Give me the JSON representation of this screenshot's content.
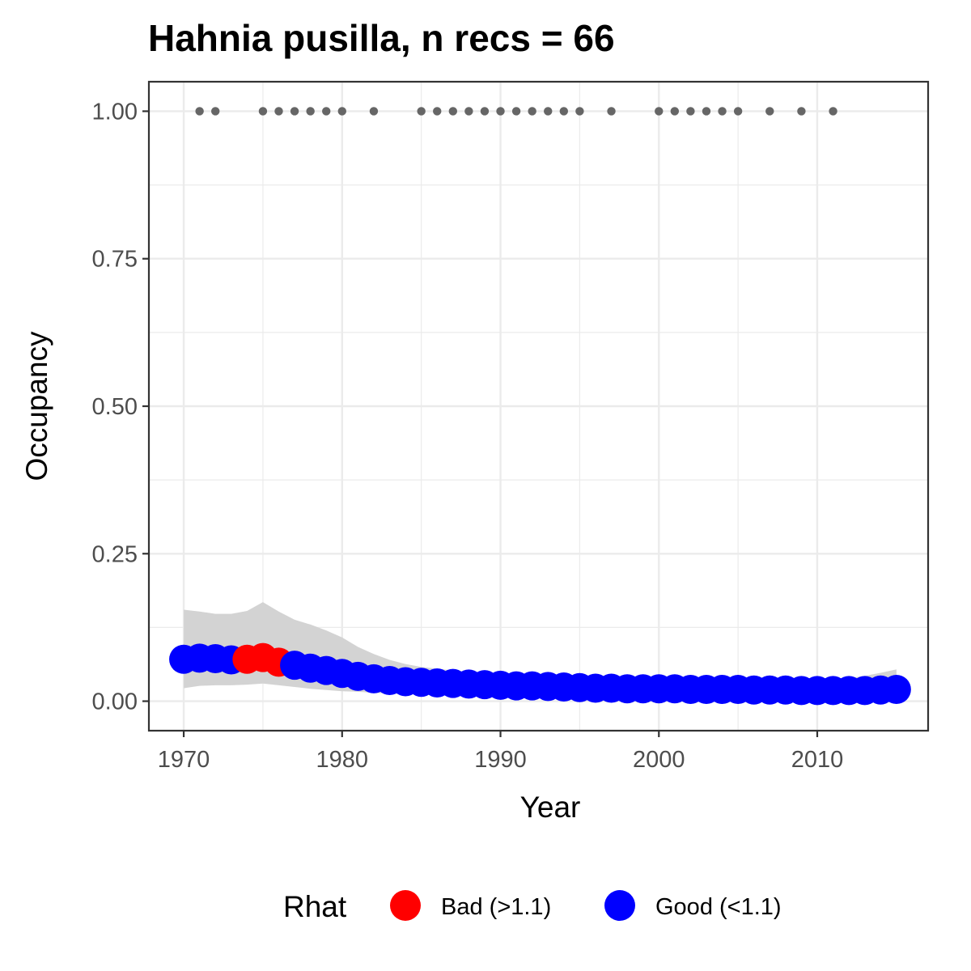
{
  "chart_data": {
    "type": "scatter",
    "title": "Hahnia pusilla, n recs = 66",
    "xlabel": "Year",
    "ylabel": "Occupancy",
    "xlim": [
      1967.8,
      2017.0
    ],
    "ylim": [
      -0.05,
      1.05
    ],
    "x_ticks": [
      1970,
      1980,
      1990,
      2000,
      2010
    ],
    "x_tick_labels": [
      "1970",
      "1980",
      "1990",
      "2000",
      "2010"
    ],
    "y_ticks": [
      0,
      0.25,
      0.5,
      0.75,
      1.0
    ],
    "y_tick_labels": [
      "0.00",
      "0.25",
      "0.50",
      "0.75",
      "1.00"
    ],
    "grid": true,
    "legend": {
      "title": "Rhat",
      "position": "bottom",
      "entries": [
        {
          "label": "Bad (>1.1)",
          "color": "#ff0000"
        },
        {
          "label": "Good (<1.1)",
          "color": "#0000ff"
        }
      ]
    },
    "colors": {
      "bad": "#ff0000",
      "good": "#0000ff",
      "records": "#666666",
      "ribbon": "#d3d3d3"
    },
    "records": {
      "y": 1.0,
      "years": [
        1971,
        1972,
        1975,
        1976,
        1977,
        1978,
        1979,
        1980,
        1982,
        1985,
        1986,
        1987,
        1988,
        1989,
        1990,
        1991,
        1992,
        1993,
        1994,
        1995,
        1997,
        2000,
        2001,
        2002,
        2003,
        2004,
        2005,
        2007,
        2009,
        2011
      ]
    },
    "series": [
      {
        "x": [
          1970,
          1971,
          1972,
          1973,
          1974,
          1975,
          1976,
          1977,
          1978,
          1979,
          1980,
          1981,
          1982,
          1983,
          1984,
          1985,
          1986,
          1987,
          1988,
          1989,
          1990,
          1991,
          1992,
          1993,
          1994,
          1995,
          1996,
          1997,
          1998,
          1999,
          2000,
          2001,
          2002,
          2003,
          2004,
          2005,
          2006,
          2007,
          2008,
          2009,
          2010,
          2011,
          2012,
          2013,
          2014,
          2015
        ],
        "mean": [
          0.071,
          0.073,
          0.072,
          0.07,
          0.071,
          0.074,
          0.066,
          0.061,
          0.056,
          0.052,
          0.047,
          0.042,
          0.038,
          0.035,
          0.033,
          0.032,
          0.031,
          0.03,
          0.029,
          0.028,
          0.027,
          0.026,
          0.026,
          0.025,
          0.024,
          0.023,
          0.022,
          0.022,
          0.021,
          0.021,
          0.021,
          0.021,
          0.02,
          0.02,
          0.02,
          0.02,
          0.019,
          0.019,
          0.019,
          0.018,
          0.018,
          0.018,
          0.018,
          0.018,
          0.019,
          0.02
        ],
        "rhat": [
          "good",
          "good",
          "good",
          "good",
          "bad",
          "bad",
          "bad",
          "good",
          "good",
          "good",
          "good",
          "good",
          "good",
          "good",
          "good",
          "good",
          "good",
          "good",
          "good",
          "good",
          "good",
          "good",
          "good",
          "good",
          "good",
          "good",
          "good",
          "good",
          "good",
          "good",
          "good",
          "good",
          "good",
          "good",
          "good",
          "good",
          "good",
          "good",
          "good",
          "good",
          "good",
          "good",
          "good",
          "good",
          "good",
          "good"
        ],
        "lower": [
          0.022,
          0.026,
          0.027,
          0.027,
          0.028,
          0.03,
          0.027,
          0.024,
          0.021,
          0.019,
          0.017,
          0.016,
          0.014,
          0.013,
          0.012,
          0.012,
          0.011,
          0.011,
          0.011,
          0.01,
          0.01,
          0.01,
          0.01,
          0.009,
          0.009,
          0.009,
          0.009,
          0.008,
          0.008,
          0.008,
          0.008,
          0.008,
          0.008,
          0.008,
          0.008,
          0.007,
          0.007,
          0.007,
          0.007,
          0.007,
          0.007,
          0.007,
          0.007,
          0.007,
          0.007,
          0.007
        ],
        "upper": [
          0.155,
          0.152,
          0.148,
          0.148,
          0.153,
          0.168,
          0.152,
          0.138,
          0.13,
          0.12,
          0.108,
          0.092,
          0.08,
          0.07,
          0.063,
          0.058,
          0.055,
          0.052,
          0.05,
          0.048,
          0.046,
          0.045,
          0.044,
          0.043,
          0.042,
          0.041,
          0.04,
          0.039,
          0.039,
          0.038,
          0.038,
          0.038,
          0.037,
          0.037,
          0.037,
          0.037,
          0.036,
          0.036,
          0.036,
          0.036,
          0.036,
          0.037,
          0.039,
          0.043,
          0.048,
          0.054
        ]
      }
    ]
  }
}
